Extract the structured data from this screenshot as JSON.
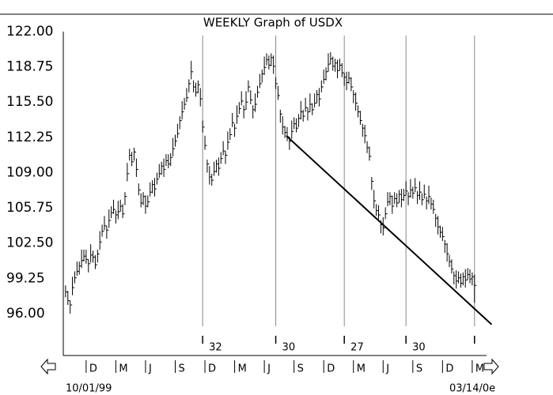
{
  "chart_data": {
    "type": "hlc",
    "title": "WEEKLY Graph of USDX",
    "start_label": "10/01/99",
    "end_label": "03/14/0e",
    "ylim": [
      92.14,
      122
    ],
    "xlim": [
      -1,
      186
    ],
    "yticks": [
      {
        "value": 96,
        "label": "96.00"
      },
      {
        "value": 99.25,
        "label": "99.25"
      },
      {
        "value": 102.5,
        "label": "102.50"
      },
      {
        "value": 105.75,
        "label": "105.75"
      },
      {
        "value": 109,
        "label": "109.00"
      },
      {
        "value": 112.25,
        "label": "112.25"
      },
      {
        "value": 115.5,
        "label": "115.50"
      },
      {
        "value": 118.75,
        "label": "118.75"
      },
      {
        "value": 122,
        "label": "122.00"
      }
    ],
    "xticks": [
      {
        "value": 9,
        "label": "D"
      },
      {
        "value": 22,
        "label": "M"
      },
      {
        "value": 35,
        "label": "J"
      },
      {
        "value": 48,
        "label": "S"
      },
      {
        "value": 61,
        "label": "D"
      },
      {
        "value": 74,
        "label": "M"
      },
      {
        "value": 87,
        "label": "J"
      },
      {
        "value": 100,
        "label": "S"
      },
      {
        "value": 113,
        "label": "D"
      },
      {
        "value": 126,
        "label": "M"
      },
      {
        "value": 139,
        "label": "J"
      },
      {
        "value": 152,
        "label": "S"
      },
      {
        "value": 165,
        "label": "D"
      },
      {
        "value": 178,
        "label": "M"
      }
    ],
    "cycle_lines": [
      60,
      92,
      122,
      149,
      179
    ],
    "cycle_lengths": [
      32,
      30,
      27,
      30
    ],
    "trendline": {
      "x": [
        96.6,
        186.5
      ],
      "y": [
        112.4,
        95.0
      ]
    },
    "color": "#000000",
    "high": [
      98.6,
      98.1,
      97.2,
      99.4,
      99.9,
      100.8,
      100.8,
      101.9,
      101.9,
      101.9,
      101.0,
      102.4,
      101.8,
      101.4,
      101.9,
      103.6,
      104.2,
      105.0,
      104.1,
      105.6,
      105.9,
      106.5,
      105.5,
      106.4,
      106.5,
      106.1,
      107.2,
      109.9,
      111.2,
      110.9,
      111.3,
      110.3,
      108.0,
      107.1,
      107.2,
      106.9,
      106.9,
      108.1,
      108.3,
      108.5,
      109.0,
      109.8,
      110.0,
      110.3,
      110.7,
      110.7,
      110.8,
      112.2,
      112.5,
      113.5,
      114.2,
      115.6,
      115.9,
      116.8,
      117.6,
      119.3,
      117.5,
      117.3,
      117.5,
      116.8,
      113.8,
      112.4,
      110.2,
      109.6,
      108.9,
      110.0,
      110.2,
      110.4,
      110.9,
      111.9,
      111.0,
      112.8,
      113.1,
      114.5,
      113.5,
      115.2,
      115.5,
      116.5,
      115.2,
      116.5,
      117.5,
      116.6,
      115.2,
      116.3,
      117.0,
      118.1,
      118.5,
      119.7,
      120.0,
      119.8,
      120.0,
      119.8,
      117.8,
      117.0,
      114.8,
      114.2,
      113.3,
      113.2,
      112.3,
      113.8,
      114.1,
      114.0,
      114.4,
      115.6,
      114.8,
      115.9,
      115.0,
      116.3,
      115.4,
      116.3,
      116.6,
      116.8,
      117.5,
      118.5,
      118.7,
      120.0,
      120.1,
      119.7,
      119.5,
      119.4,
      119.5,
      119.1,
      118.2,
      118.3,
      118.3,
      117.8,
      116.6,
      116.4,
      115.2,
      114.7,
      113.5,
      113.4,
      111.9,
      111.4,
      108.6,
      107.4,
      106.1,
      106.0,
      104.6,
      104.9,
      105.8,
      107.2,
      107.2,
      106.9,
      107.2,
      107.1,
      107.4,
      107.5,
      107.5,
      108.2,
      107.2,
      108.4,
      107.7,
      108.5,
      107.3,
      108.2,
      107.1,
      107.9,
      106.8,
      107.8,
      106.7,
      106.5,
      105.2,
      105.0,
      104.1,
      104.0,
      102.8,
      102.5,
      101.4,
      101.0,
      99.9,
      100.0,
      99.9,
      99.7,
      99.8,
      100.1,
      100.2,
      100.1,
      99.8,
      99.6
    ],
    "low": [
      97.5,
      96.8,
      96.0,
      97.7,
      98.8,
      99.5,
      99.6,
      100.2,
      100.8,
      100.6,
      99.8,
      100.7,
      100.7,
      100.1,
      100.7,
      101.9,
      103.1,
      103.7,
      102.9,
      103.9,
      104.8,
      105.2,
      104.3,
      104.7,
      105.4,
      104.8,
      106.0,
      108.2,
      110.1,
      109.6,
      110.1,
      108.6,
      106.9,
      105.8,
      106.0,
      105.2,
      105.8,
      106.8,
      107.1,
      106.8,
      107.9,
      108.5,
      108.8,
      108.6,
      109.6,
      109.4,
      109.6,
      110.5,
      111.4,
      112.2,
      113.0,
      113.9,
      114.8,
      115.5,
      116.4,
      117.6,
      116.4,
      116.0,
      116.3,
      115.1,
      112.7,
      111.1,
      109.0,
      107.9,
      107.8,
      108.7,
      109.0,
      108.7,
      109.8,
      110.6,
      109.8,
      111.1,
      112.0,
      113.2,
      112.3,
      113.5,
      114.4,
      115.2,
      114.0,
      114.8,
      116.4,
      115.3,
      114.0,
      114.6,
      115.9,
      116.8,
      117.3,
      118.0,
      118.9,
      118.5,
      118.8,
      118.1,
      116.7,
      115.7,
      113.6,
      112.5,
      112.2,
      111.9,
      111.1,
      112.1,
      113.0,
      112.7,
      113.2,
      113.9,
      113.7,
      114.6,
      113.8,
      114.6,
      114.3,
      115.0,
      115.4,
      115.1,
      116.4,
      117.2,
      117.5,
      118.3,
      119.0,
      118.4,
      118.3,
      117.7,
      118.4,
      117.8,
      117.0,
      116.6,
      117.2,
      116.5,
      115.4,
      114.7,
      114.1,
      113.4,
      112.3,
      111.7,
      110.8,
      110.1,
      107.4,
      105.7,
      105.0,
      104.7,
      103.4,
      103.2,
      104.7,
      105.9,
      106.0,
      105.2,
      106.1,
      105.8,
      106.2,
      105.8,
      106.4,
      106.9,
      106.0,
      106.7,
      106.6,
      107.2,
      106.1,
      106.5,
      106.0,
      106.6,
      105.6,
      106.1,
      105.6,
      105.2,
      104.0,
      103.3,
      103.0,
      102.7,
      101.6,
      100.8,
      100.3,
      99.7,
      98.7,
      98.3,
      98.8,
      98.4,
      98.6,
      98.4,
      99.1,
      98.8,
      98.6,
      97.0
    ],
    "close": [
      98.0,
      97.2,
      96.8,
      98.4,
      99.3,
      99.9,
      100.4,
      100.9,
      101.3,
      101.0,
      100.6,
      101.4,
      101.2,
      100.5,
      101.5,
      102.6,
      103.6,
      104.1,
      103.7,
      104.6,
      105.3,
      105.6,
      105.1,
      105.4,
      105.9,
      105.2,
      106.8,
      108.9,
      110.6,
      110.0,
      110.9,
      109.3,
      107.4,
      106.2,
      106.8,
      105.9,
      106.3,
      107.2,
      107.9,
      107.5,
      108.4,
      108.9,
      109.6,
      109.3,
      110.1,
      109.8,
      110.4,
      111.2,
      111.9,
      112.6,
      113.8,
      114.6,
      115.3,
      115.9,
      117.2,
      118.3,
      116.9,
      116.4,
      117.1,
      115.8,
      113.2,
      111.5,
      109.8,
      108.6,
      108.3,
      109.1,
      109.8,
      109.4,
      110.3,
      111.0,
      110.6,
      111.8,
      112.5,
      113.6,
      113.1,
      114.2,
      114.9,
      115.6,
      114.8,
      115.5,
      116.9,
      115.7,
      114.8,
      115.3,
      116.4,
      117.2,
      118.1,
      118.7,
      119.4,
      118.9,
      119.6,
      118.8,
      117.2,
      116.1,
      114.4,
      113.2,
      112.7,
      112.3,
      111.9,
      112.8,
      113.5,
      113.1,
      114.0,
      114.6,
      114.2,
      115.0,
      114.6,
      115.3,
      114.8,
      115.4,
      116.2,
      115.8,
      116.9,
      117.6,
      118.3,
      119.0,
      119.5,
      118.8,
      119.1,
      118.4,
      118.9,
      118.2,
      117.8,
      117.3,
      117.7,
      116.9,
      116.2,
      115.4,
      114.6,
      113.8,
      113.1,
      112.4,
      111.3,
      110.5,
      108.2,
      106.4,
      105.5,
      105.1,
      104.2,
      103.9,
      105.2,
      106.3,
      106.8,
      105.9,
      106.6,
      106.2,
      107.0,
      106.5,
      106.9,
      107.3,
      106.8,
      107.4,
      107.1,
      107.6,
      106.9,
      107.2,
      106.5,
      107.0,
      106.4,
      106.8,
      106.1,
      105.6,
      104.8,
      104.0,
      103.5,
      103.1,
      102.4,
      101.5,
      100.8,
      100.1,
      99.5,
      99.0,
      99.3,
      98.8,
      99.4,
      99.1,
      99.6,
      99.2,
      99.4,
      98.6
    ]
  }
}
